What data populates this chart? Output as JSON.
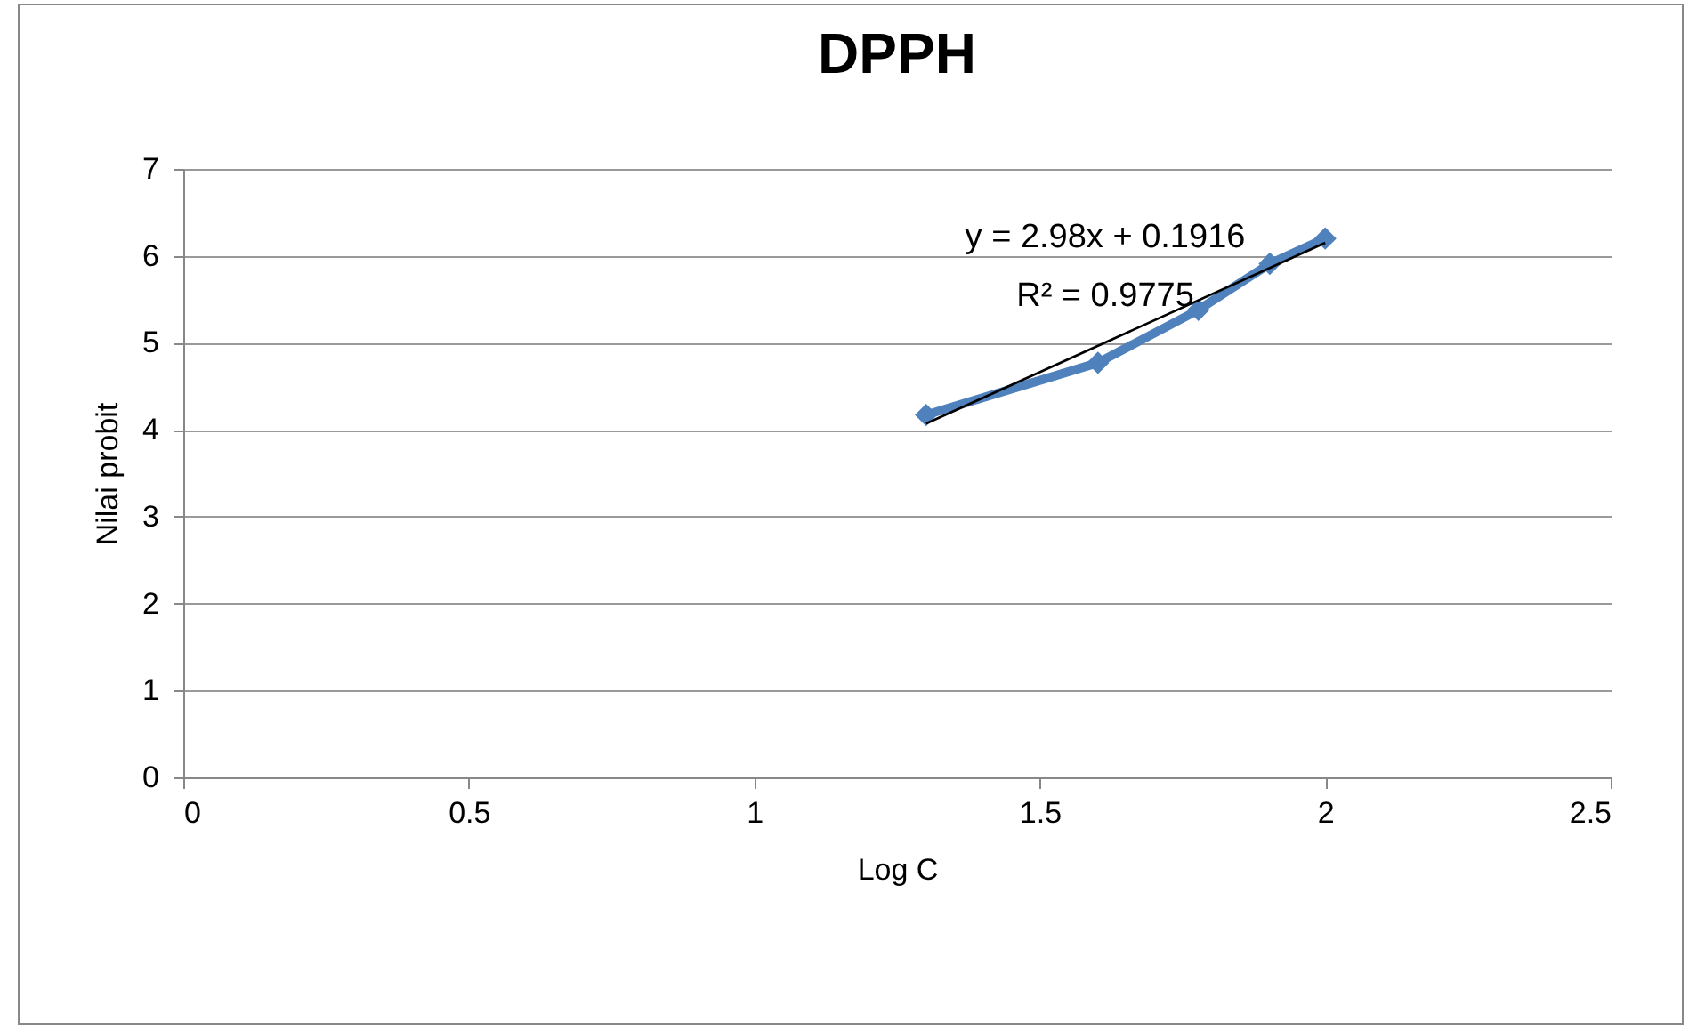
{
  "chart_data": {
    "type": "line",
    "title": "DPPH",
    "xlabel": "Log C",
    "ylabel": "Nilai probit",
    "x": [
      1.301,
      1.602,
      1.778,
      1.903,
      2.0
    ],
    "series": [
      {
        "color": "#4f81bd",
        "values": [
          4.17,
          4.77,
          5.38,
          5.91,
          6.2
        ],
        "marker": "diamond"
      },
      {
        "type": "line",
        "color": "#000000",
        "x": [
          1.301,
          2.0
        ],
        "values": [
          4.07,
          6.15
        ],
        "marker": "none"
      }
    ],
    "annotations": [
      "y = 2.98x + 0.1916",
      "R² = 0.9775"
    ],
    "xlim": [
      0,
      2.5
    ],
    "xticks": [
      0,
      0.5,
      1,
      1.5,
      2,
      2.5
    ],
    "ylim": [
      0,
      7
    ],
    "yticks": [
      0,
      1,
      2,
      3,
      4,
      5,
      6,
      7
    ],
    "grid": "y"
  }
}
